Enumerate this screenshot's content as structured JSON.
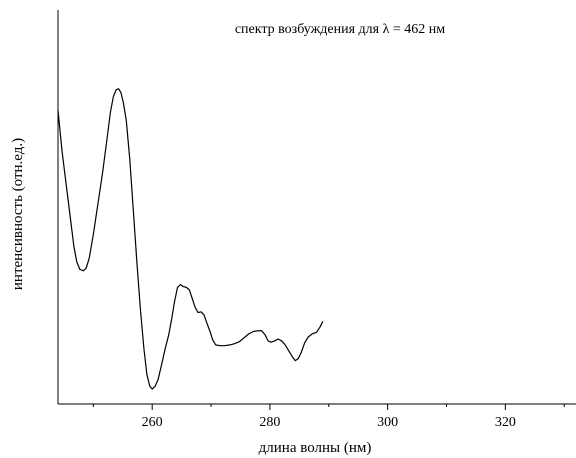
{
  "chart_data": {
    "type": "line",
    "title": "",
    "annotation": "спектр возбуждения для λ = 462 нм",
    "xlabel": "длина волны (нм)",
    "ylabel": "интенсивность (отн.ед.)",
    "xlim": [
      244,
      332
    ],
    "ylim": [
      0,
      1
    ],
    "x_ticks": [
      {
        "value": 260,
        "label": "260"
      },
      {
        "value": 280,
        "label": "280"
      },
      {
        "value": 300,
        "label": "300"
      },
      {
        "value": 320,
        "label": "320"
      }
    ],
    "x_minor_ticks": [
      250,
      270,
      290,
      310,
      330
    ],
    "y_ticks_shown": false,
    "grid": false,
    "series": [
      {
        "color": "#000000",
        "points": [
          [
            244,
            0.745
          ],
          [
            244.3,
            0.7
          ],
          [
            244.7,
            0.64
          ],
          [
            245.2,
            0.58
          ],
          [
            245.7,
            0.52
          ],
          [
            246.2,
            0.46
          ],
          [
            246.7,
            0.4
          ],
          [
            247.2,
            0.36
          ],
          [
            247.7,
            0.342
          ],
          [
            248.3,
            0.338
          ],
          [
            248.8,
            0.345
          ],
          [
            249.3,
            0.37
          ],
          [
            250.0,
            0.43
          ],
          [
            250.8,
            0.51
          ],
          [
            251.6,
            0.59
          ],
          [
            252.3,
            0.67
          ],
          [
            252.9,
            0.74
          ],
          [
            253.4,
            0.78
          ],
          [
            253.9,
            0.798
          ],
          [
            254.3,
            0.8
          ],
          [
            254.7,
            0.79
          ],
          [
            255.1,
            0.765
          ],
          [
            255.6,
            0.72
          ],
          [
            256.2,
            0.62
          ],
          [
            256.8,
            0.49
          ],
          [
            257.4,
            0.36
          ],
          [
            258.0,
            0.24
          ],
          [
            258.6,
            0.14
          ],
          [
            259.1,
            0.075
          ],
          [
            259.6,
            0.045
          ],
          [
            260.0,
            0.038
          ],
          [
            260.5,
            0.045
          ],
          [
            261.0,
            0.062
          ],
          [
            261.6,
            0.1
          ],
          [
            262.2,
            0.14
          ],
          [
            262.8,
            0.175
          ],
          [
            263.3,
            0.215
          ],
          [
            263.8,
            0.26
          ],
          [
            264.3,
            0.296
          ],
          [
            264.8,
            0.303
          ],
          [
            265.3,
            0.298
          ],
          [
            265.8,
            0.296
          ],
          [
            266.3,
            0.29
          ],
          [
            266.8,
            0.268
          ],
          [
            267.3,
            0.245
          ],
          [
            267.8,
            0.232
          ],
          [
            268.3,
            0.234
          ],
          [
            268.8,
            0.226
          ],
          [
            269.3,
            0.205
          ],
          [
            269.8,
            0.185
          ],
          [
            270.3,
            0.162
          ],
          [
            270.8,
            0.15
          ],
          [
            271.5,
            0.148
          ],
          [
            272.3,
            0.148
          ],
          [
            273.2,
            0.15
          ],
          [
            274.0,
            0.153
          ],
          [
            274.8,
            0.158
          ],
          [
            275.6,
            0.168
          ],
          [
            276.4,
            0.178
          ],
          [
            277.2,
            0.184
          ],
          [
            278.0,
            0.186
          ],
          [
            278.6,
            0.186
          ],
          [
            279.2,
            0.175
          ],
          [
            279.7,
            0.16
          ],
          [
            280.2,
            0.157
          ],
          [
            280.8,
            0.16
          ],
          [
            281.4,
            0.165
          ],
          [
            282.0,
            0.16
          ],
          [
            282.6,
            0.15
          ],
          [
            283.2,
            0.135
          ],
          [
            283.8,
            0.12
          ],
          [
            284.3,
            0.11
          ],
          [
            284.8,
            0.115
          ],
          [
            285.3,
            0.13
          ],
          [
            285.9,
            0.155
          ],
          [
            286.5,
            0.17
          ],
          [
            287.2,
            0.178
          ],
          [
            287.9,
            0.182
          ],
          [
            288.5,
            0.195
          ],
          [
            289.0,
            0.21
          ]
        ]
      }
    ]
  }
}
